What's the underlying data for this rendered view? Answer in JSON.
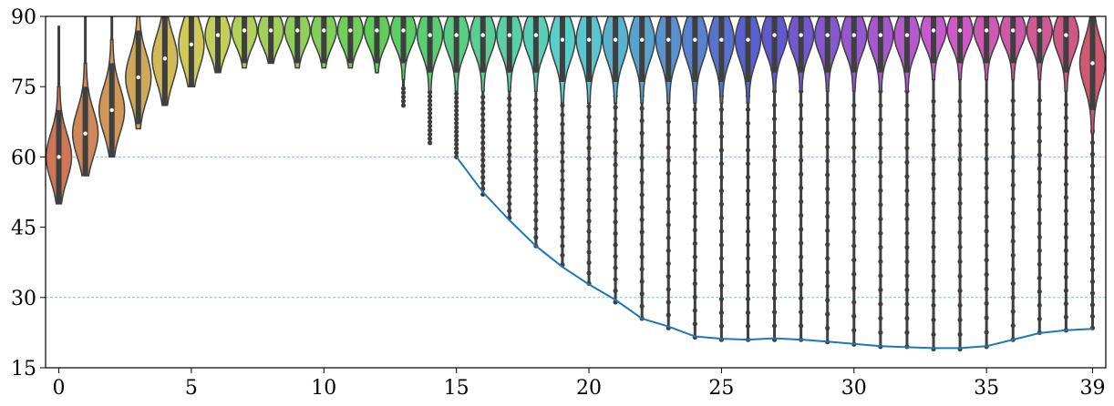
{
  "chart_data": {
    "type": "violin",
    "title": "",
    "xlabel": "",
    "ylabel": "",
    "x_ticks": [
      "0",
      "5",
      "10",
      "15",
      "20",
      "25",
      "30",
      "35",
      "39"
    ],
    "y_ticks": [
      "15",
      "30",
      "45",
      "60",
      "75",
      "90"
    ],
    "xlim": [
      -0.5,
      39.5
    ],
    "ylim": [
      15,
      90
    ],
    "grid_lines_y": [
      30,
      60
    ],
    "categories": [
      0,
      1,
      2,
      3,
      4,
      5,
      6,
      7,
      8,
      9,
      10,
      11,
      12,
      13,
      14,
      15,
      16,
      17,
      18,
      19,
      20,
      21,
      22,
      23,
      24,
      25,
      26,
      27,
      28,
      29,
      30,
      31,
      32,
      33,
      34,
      35,
      36,
      37,
      38,
      39
    ],
    "violins": [
      {
        "median": 60,
        "min": 50,
        "max": 88
      },
      {
        "median": 65,
        "min": 56,
        "max": 90
      },
      {
        "median": 70,
        "min": 60,
        "max": 90
      },
      {
        "median": 77,
        "min": 66,
        "max": 90
      },
      {
        "median": 81,
        "min": 71,
        "max": 90
      },
      {
        "median": 84,
        "min": 75,
        "max": 90
      },
      {
        "median": 86,
        "min": 78,
        "max": 90
      },
      {
        "median": 87,
        "min": 79,
        "max": 90
      },
      {
        "median": 87,
        "min": 80,
        "max": 90
      },
      {
        "median": 87,
        "min": 79,
        "max": 90
      },
      {
        "median": 87,
        "min": 79,
        "max": 90
      },
      {
        "median": 87,
        "min": 79,
        "max": 90
      },
      {
        "median": 87,
        "min": 78,
        "max": 90
      },
      {
        "median": 87,
        "min": 71,
        "max": 90
      },
      {
        "median": 86,
        "min": 63,
        "max": 90
      },
      {
        "median": 86,
        "min": 60,
        "max": 90
      },
      {
        "median": 86,
        "min": 52,
        "max": 90
      },
      {
        "median": 86,
        "min": 47,
        "max": 90
      },
      {
        "median": 86,
        "min": 41,
        "max": 90
      },
      {
        "median": 85,
        "min": 37,
        "max": 90
      },
      {
        "median": 85,
        "min": 33,
        "max": 90
      },
      {
        "median": 85,
        "min": 29,
        "max": 90
      },
      {
        "median": 85,
        "min": 25.5,
        "max": 90
      },
      {
        "median": 85,
        "min": 23.5,
        "max": 90
      },
      {
        "median": 85,
        "min": 21.5,
        "max": 90
      },
      {
        "median": 85,
        "min": 21,
        "max": 90
      },
      {
        "median": 85,
        "min": 21,
        "max": 90
      },
      {
        "median": 86,
        "min": 21,
        "max": 90
      },
      {
        "median": 86,
        "min": 21,
        "max": 90
      },
      {
        "median": 86,
        "min": 20.5,
        "max": 90
      },
      {
        "median": 86,
        "min": 20,
        "max": 90
      },
      {
        "median": 86,
        "min": 19.5,
        "max": 90
      },
      {
        "median": 86,
        "min": 19.5,
        "max": 90
      },
      {
        "median": 87,
        "min": 19,
        "max": 90
      },
      {
        "median": 87,
        "min": 19,
        "max": 90
      },
      {
        "median": 87,
        "min": 19.5,
        "max": 90
      },
      {
        "median": 87,
        "min": 21,
        "max": 90
      },
      {
        "median": 87,
        "min": 22.5,
        "max": 90
      },
      {
        "median": 86,
        "min": 23,
        "max": 90
      },
      {
        "median": 80,
        "min": 23.5,
        "max": 87
      }
    ],
    "line_series": {
      "x": [
        15,
        16,
        17,
        18,
        19,
        20,
        21,
        22,
        23,
        24,
        25,
        26,
        27,
        28,
        29,
        30,
        31,
        32,
        33,
        34,
        35,
        36,
        37,
        38,
        39
      ],
      "y": [
        60,
        52.5,
        46.5,
        41,
        36.5,
        32.8,
        29.5,
        25.5,
        23.8,
        21.7,
        21.2,
        21.0,
        21.3,
        21.0,
        20.6,
        20.1,
        19.6,
        19.4,
        19.2,
        19.2,
        19.6,
        21.0,
        22.4,
        23.0,
        23.3
      ],
      "color": "#1f77b4"
    }
  }
}
